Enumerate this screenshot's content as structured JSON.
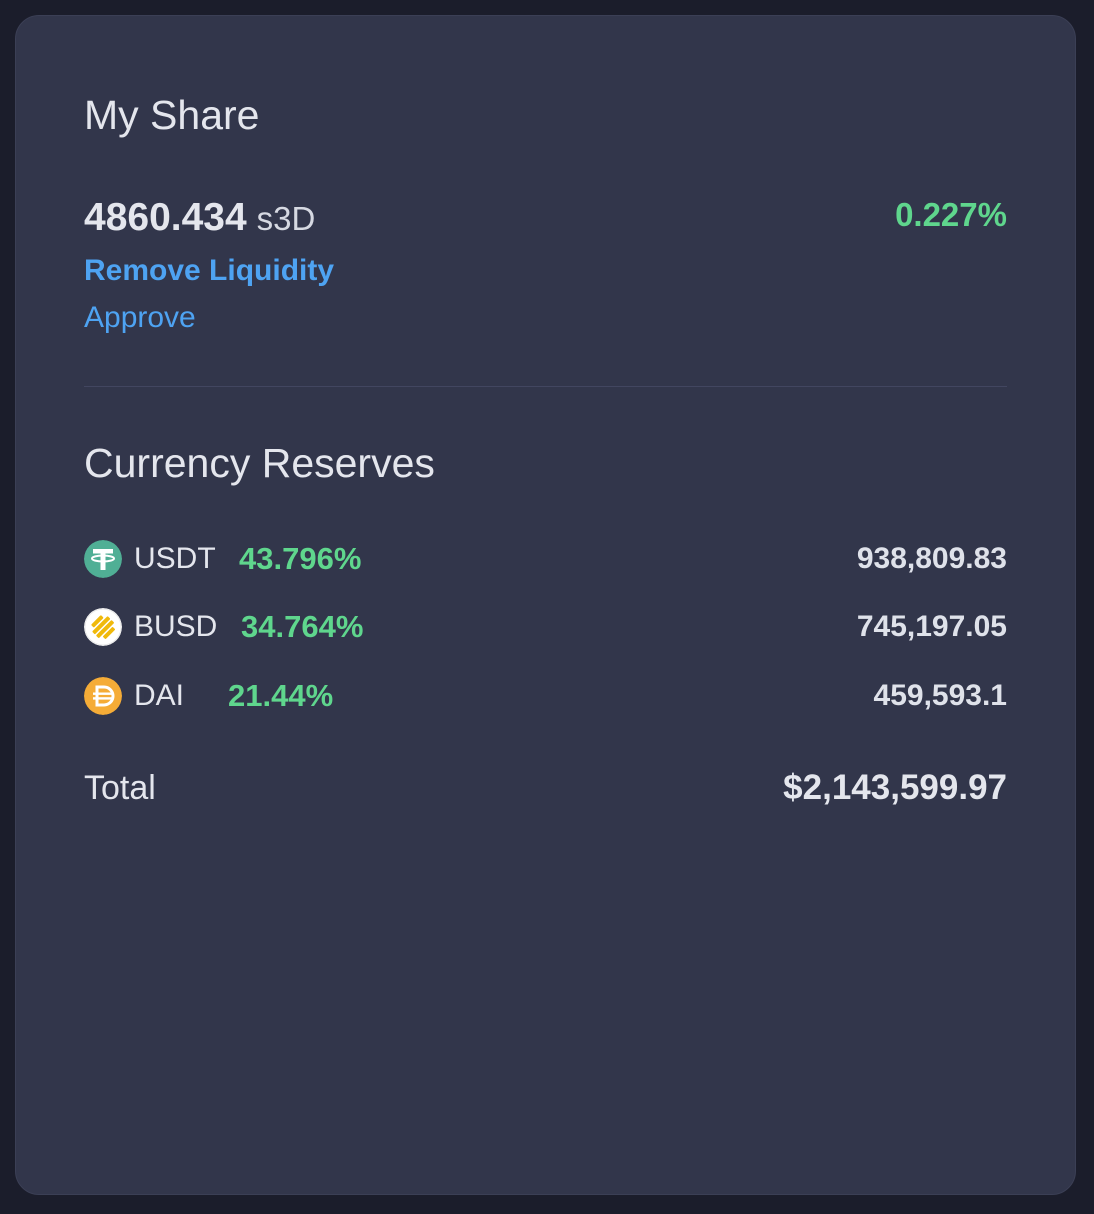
{
  "my_share": {
    "title": "My Share",
    "amount": "4860.434",
    "unit": "s3D",
    "percent": "0.227%",
    "remove_liquidity_label": "Remove Liquidity",
    "approve_label": "Approve"
  },
  "reserves": {
    "title": "Currency Reserves",
    "items": [
      {
        "symbol": "USDT",
        "percent": "43.796%",
        "amount": "938,809.83",
        "icon": "usdt-icon"
      },
      {
        "symbol": "BUSD",
        "percent": "34.764%",
        "amount": "745,197.05",
        "icon": "busd-icon"
      },
      {
        "symbol": "DAI",
        "percent": "21.44%",
        "amount": "459,593.1",
        "icon": "dai-icon"
      }
    ],
    "total_label": "Total",
    "total_value": "$2,143,599.97"
  },
  "colors": {
    "background": "#1b1d2b",
    "card": "#32364b",
    "positive": "#5fd68d",
    "link": "#4ea3f2",
    "usdt": "#50af95",
    "busd": "#f0b90b",
    "dai": "#f5ac37"
  }
}
